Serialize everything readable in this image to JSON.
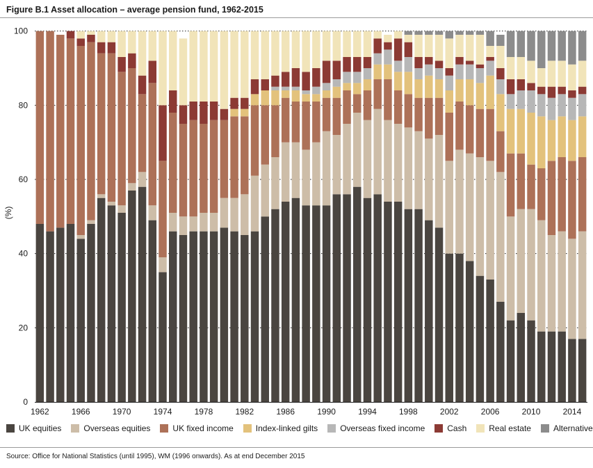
{
  "title": "Figure B.1 Asset allocation – average pension fund, 1962-2015",
  "source": "Source: Office for National Statistics (until 1995), WM (1996 onwards). As at end December 2015",
  "chart_data": {
    "type": "bar",
    "stacked": true,
    "title": "Figure B.1 Asset allocation – average pension fund, 1962-2015",
    "xlabel": "",
    "ylabel": "(%)",
    "ylim": [
      0,
      102
    ],
    "yticks": [
      0,
      20,
      40,
      60,
      80,
      100
    ],
    "grid": true,
    "legend_position": "bottom",
    "categories": [
      1962,
      1963,
      1964,
      1965,
      1966,
      1967,
      1968,
      1969,
      1970,
      1971,
      1972,
      1973,
      1974,
      1975,
      1976,
      1977,
      1978,
      1979,
      1980,
      1981,
      1982,
      1983,
      1984,
      1985,
      1986,
      1987,
      1988,
      1989,
      1990,
      1991,
      1992,
      1993,
      1994,
      1995,
      1996,
      1997,
      1998,
      1999,
      2000,
      2001,
      2002,
      2003,
      2004,
      2005,
      2006,
      2007,
      2008,
      2009,
      2010,
      2011,
      2012,
      2013,
      2014,
      2015
    ],
    "x_tick_labels": [
      "1962",
      "1966",
      "1970",
      "1974",
      "1978",
      "1982",
      "1986",
      "1990",
      "1994",
      "1998",
      "2002",
      "2006",
      "2010",
      "2014"
    ],
    "series": [
      {
        "name": "UK equities",
        "color": "#4a4540",
        "values": [
          48,
          46,
          47,
          48,
          44,
          48,
          55,
          53,
          51,
          57,
          58,
          49,
          35,
          46,
          45,
          46,
          46,
          46,
          47,
          46,
          45,
          46,
          50,
          52,
          54,
          55,
          53,
          53,
          53,
          56,
          56,
          58,
          55,
          56,
          54,
          54,
          52,
          52,
          49,
          47,
          40,
          40,
          38,
          34,
          33,
          27,
          22,
          24,
          22,
          19,
          19,
          19,
          17,
          17
        ]
      },
      {
        "name": "Overseas equities",
        "color": "#cdbda8",
        "values": [
          0,
          0,
          0,
          0,
          1,
          1,
          1,
          1,
          2,
          2,
          4,
          4,
          4,
          5,
          5,
          4,
          5,
          5,
          8,
          9,
          11,
          15,
          14,
          14,
          16,
          15,
          15,
          17,
          20,
          16,
          19,
          20,
          21,
          23,
          22,
          21,
          22,
          21,
          22,
          25,
          25,
          28,
          29,
          32,
          32,
          35,
          28,
          28,
          30,
          30,
          26,
          27,
          27,
          29
        ]
      },
      {
        "name": "UK fixed income",
        "color": "#ad7158",
        "values": [
          52,
          54,
          52,
          50,
          51,
          48,
          38,
          40,
          36,
          31,
          21,
          33,
          26,
          27,
          25,
          26,
          24,
          25,
          21,
          22,
          21,
          19,
          16,
          14,
          12,
          11,
          13,
          11,
          9,
          10,
          9,
          5,
          8,
          8,
          11,
          9,
          9,
          9,
          11,
          10,
          13,
          13,
          13,
          13,
          14,
          11,
          17,
          15,
          12,
          14,
          20,
          20,
          21,
          20
        ]
      },
      {
        "name": "Index-linked gilts",
        "color": "#e3c27c",
        "values": [
          0,
          0,
          0,
          0,
          0,
          0,
          0,
          0,
          0,
          0,
          0,
          0,
          0,
          0,
          0,
          0,
          0,
          0,
          0,
          2,
          2,
          3,
          4,
          4,
          2,
          3,
          2,
          2,
          2,
          3,
          2,
          3,
          3,
          4,
          4,
          5,
          6,
          5,
          6,
          5,
          6,
          6,
          7,
          7,
          9,
          10,
          12,
          12,
          14,
          14,
          11,
          11,
          11,
          11
        ]
      },
      {
        "name": "Overseas fixed income",
        "color": "#b7b7b7",
        "values": [
          0,
          0,
          0,
          0,
          0,
          0,
          0,
          0,
          0,
          0,
          0,
          0,
          0,
          0,
          0,
          0,
          0,
          0,
          0,
          0,
          0,
          0,
          0,
          1,
          1,
          1,
          1,
          2,
          2,
          2,
          3,
          3,
          3,
          3,
          4,
          3,
          4,
          3,
          3,
          3,
          4,
          4,
          4,
          4,
          4,
          4,
          4,
          5,
          6,
          6,
          6,
          6,
          6,
          6
        ]
      },
      {
        "name": "Cash",
        "color": "#8c3a34",
        "values": [
          0,
          0,
          0,
          2,
          2,
          2,
          3,
          3,
          4,
          4,
          5,
          6,
          15,
          6,
          5,
          5,
          6,
          5,
          3,
          3,
          3,
          4,
          3,
          3,
          4,
          5,
          5,
          5,
          6,
          5,
          4,
          4,
          3,
          4,
          2,
          6,
          4,
          3,
          2,
          2,
          2,
          2,
          1,
          1,
          1,
          3,
          4,
          3,
          2,
          2,
          3,
          2,
          2,
          2
        ]
      },
      {
        "name": "Real estate",
        "color": "#f1e4b9",
        "values": [
          0,
          0,
          0,
          0,
          2,
          1,
          3,
          3,
          7,
          6,
          12,
          8,
          20,
          16,
          18,
          19,
          19,
          19,
          21,
          18,
          18,
          13,
          13,
          12,
          11,
          10,
          11,
          10,
          8,
          8,
          7,
          7,
          7,
          2,
          2,
          2,
          2,
          6,
          6,
          7,
          8,
          6,
          7,
          8,
          3,
          6,
          6,
          6,
          6,
          5,
          7,
          7,
          7,
          7
        ]
      },
      {
        "name": "Alternatives",
        "color": "#8c8c8c",
        "values": [
          0,
          0,
          0,
          0,
          0,
          0,
          0,
          0,
          0,
          0,
          0,
          0,
          0,
          0,
          0,
          0,
          0,
          0,
          0,
          0,
          0,
          0,
          0,
          0,
          0,
          0,
          0,
          0,
          0,
          0,
          0,
          0,
          0,
          0,
          0,
          0,
          1,
          1,
          1,
          1,
          2,
          1,
          1,
          1,
          4,
          3,
          7,
          7,
          8,
          10,
          8,
          8,
          9,
          8
        ]
      }
    ]
  }
}
